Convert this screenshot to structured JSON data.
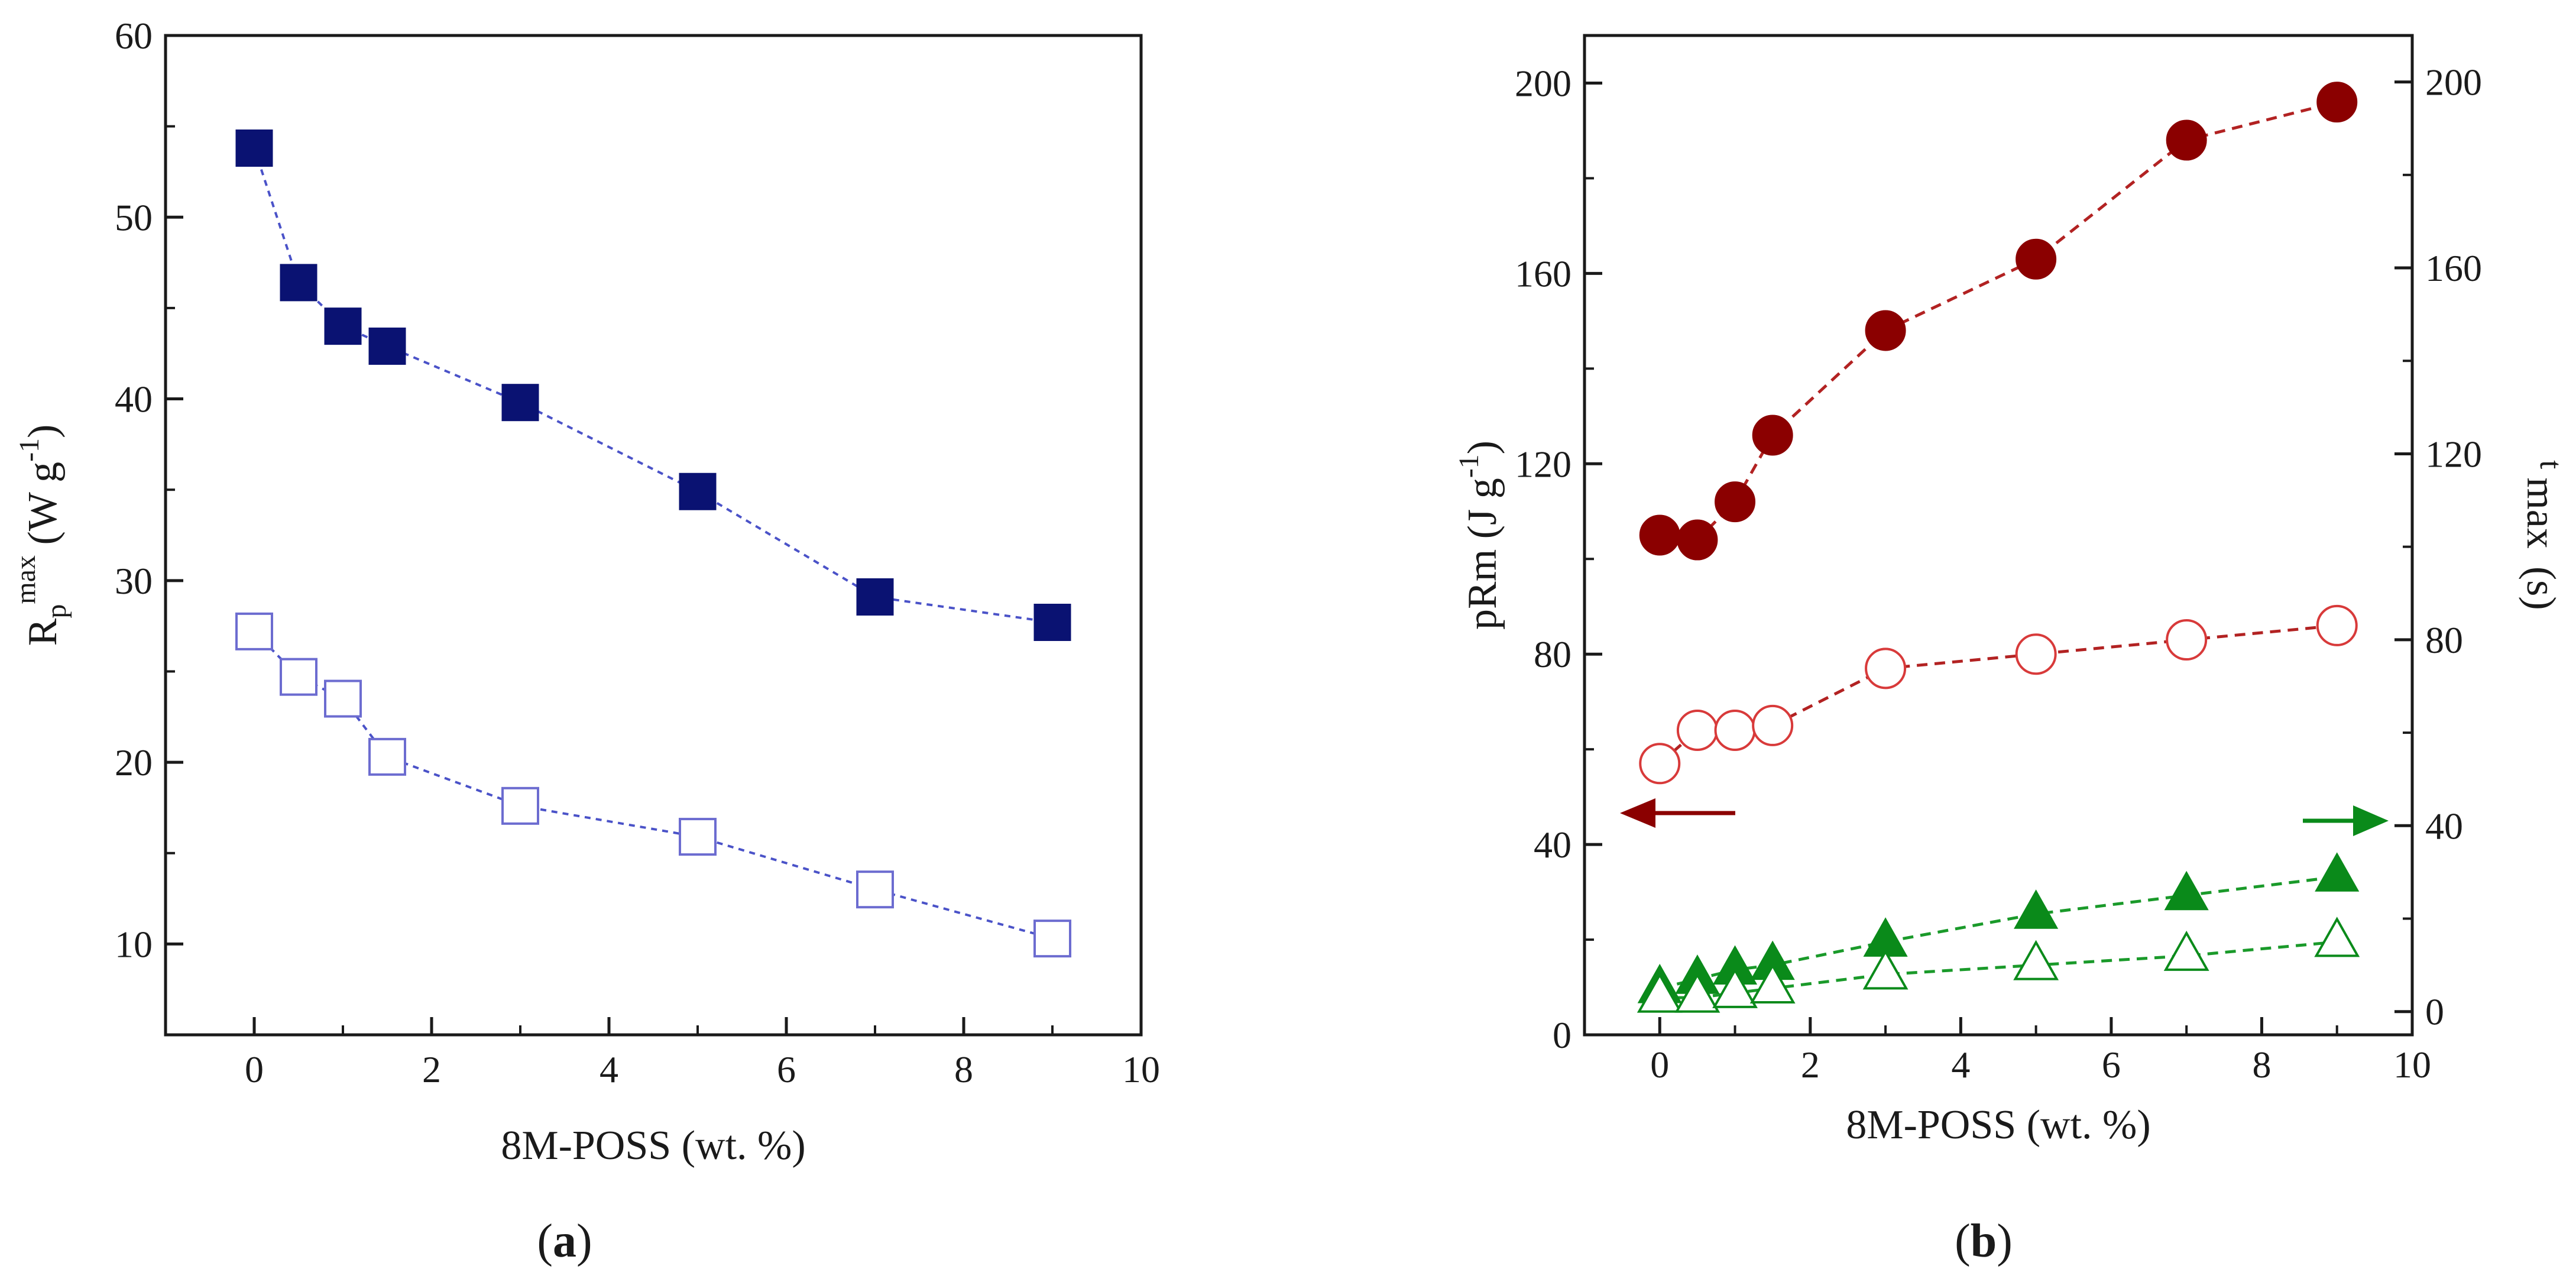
{
  "chart_data": [
    {
      "type": "line",
      "panel": "a",
      "caption_open": "(",
      "caption": "a",
      "caption_close": ")",
      "xlabel": "8M-POSS (wt. %)",
      "ylabel": {
        "base": "R",
        "sub": "p",
        "sup": "max",
        "unit_open": " (W g",
        "unit_sup": "-1",
        "unit_close": ")"
      },
      "xlim": [
        -1,
        10
      ],
      "ylim": [
        5,
        60
      ],
      "xticks": [
        0,
        2,
        4,
        6,
        8,
        10
      ],
      "yticks": [
        10,
        20,
        30,
        40,
        50,
        60
      ],
      "colors": {
        "series": "#0a1272",
        "line": "#4a52c8",
        "open": "#6c6cd0"
      },
      "series": [
        {
          "name": "filled squares",
          "marker": "square-filled",
          "x": [
            0,
            0.5,
            1,
            1.5,
            3,
            5,
            7,
            9
          ],
          "y": [
            53.8,
            46.4,
            44.0,
            42.9,
            39.8,
            34.9,
            29.1,
            27.7
          ]
        },
        {
          "name": "open squares",
          "marker": "square-open",
          "x": [
            0,
            0.5,
            1,
            1.5,
            3,
            5,
            7,
            9
          ],
          "y": [
            27.2,
            24.7,
            23.5,
            20.3,
            17.6,
            15.9,
            13.0,
            10.3
          ]
        }
      ]
    },
    {
      "type": "line",
      "panel": "b",
      "caption_open": "(",
      "caption": "b",
      "caption_close": ")",
      "xlabel": "8M-POSS (wt. %)",
      "ylabel_left": "pRm (J g-1)",
      "ylabel_left_parts": {
        "base": "pRm (J g",
        "sup": "-1",
        "close": ")"
      },
      "ylabel_right": "t max (s)",
      "ylabel_right_parts": {
        "t": "t",
        "max": "max",
        "unit": "(s)"
      },
      "xlim": [
        -1,
        10
      ],
      "ylim_left": [
        0,
        210
      ],
      "ylim_right": [
        -5,
        210
      ],
      "xticks": [
        0,
        2,
        4,
        6,
        8,
        10
      ],
      "yticks_left": [
        0,
        40,
        80,
        120,
        160,
        200
      ],
      "yticks_right": [
        0,
        40,
        80,
        120,
        160,
        200
      ],
      "colors": {
        "red": "#8b0000",
        "red_line": "#b22222",
        "open_red": "#d83a3a",
        "green": "#0a8a1a",
        "green_line": "#1a9a2a"
      },
      "arrows": {
        "left_axis": "red arrow pointing left",
        "right_axis": "green arrow pointing right"
      },
      "series": [
        {
          "name": "filled circles",
          "axis": "left",
          "marker": "circle-filled",
          "x": [
            0,
            0.5,
            1,
            1.5,
            3,
            5,
            7,
            9
          ],
          "y": [
            105,
            104,
            112,
            126,
            148,
            163,
            188,
            196
          ]
        },
        {
          "name": "open circles",
          "axis": "left",
          "marker": "circle-open",
          "x": [
            0,
            0.5,
            1,
            1.5,
            3,
            5,
            7,
            9
          ],
          "y": [
            57,
            64,
            64,
            65,
            77,
            80,
            83,
            86
          ]
        },
        {
          "name": "filled triangles",
          "axis": "right",
          "marker": "triangle-filled",
          "x": [
            0,
            0.5,
            1,
            1.5,
            3,
            5,
            7,
            9
          ],
          "y": [
            5,
            7,
            9,
            10,
            15,
            21,
            25,
            29
          ]
        },
        {
          "name": "open triangles",
          "axis": "right",
          "marker": "triangle-open",
          "x": [
            0,
            0.5,
            1,
            1.5,
            3,
            5,
            7,
            9
          ],
          "y": [
            3,
            3,
            4,
            5,
            8,
            10,
            12,
            15
          ]
        }
      ]
    }
  ]
}
